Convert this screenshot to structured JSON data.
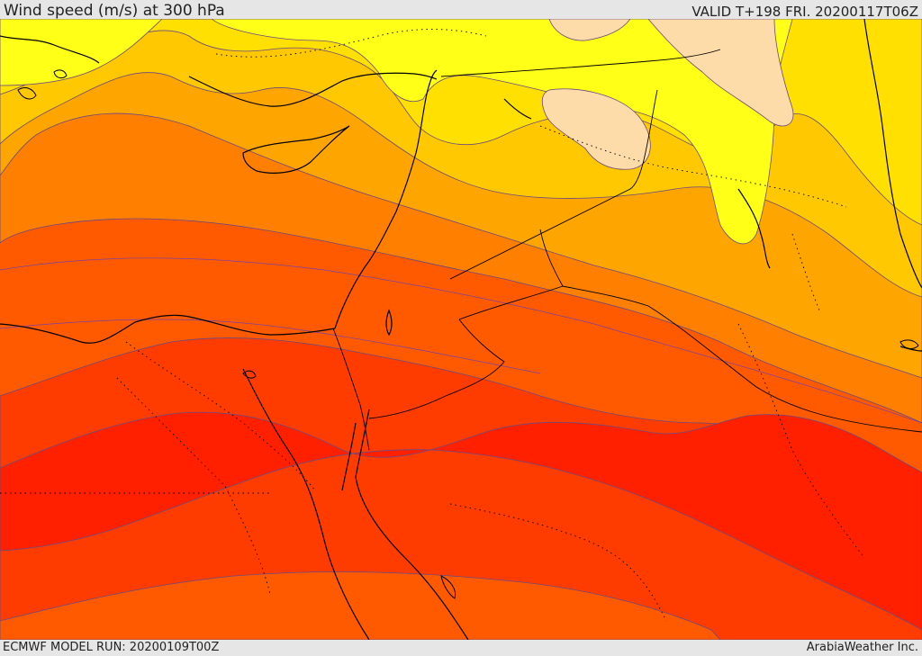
{
  "header": {
    "title": "Wind speed (m/s) at 300 hPa",
    "valid": "VALID T+198 FRI. 20200117T06Z"
  },
  "footer": {
    "model_run": "ECMWF MODEL RUN: 20200109T00Z",
    "credit": "ArabiaWeather Inc."
  },
  "colors": {
    "bands_low_to_high": [
      "#fddcaa",
      "#ffff18",
      "#ffe000",
      "#ffc800",
      "#ffa500",
      "#ff8000",
      "#ff5a00",
      "#ff3c00",
      "#ff2000"
    ],
    "coast_and_borders": "#000000",
    "contour_line": "#5a3cc8"
  }
}
